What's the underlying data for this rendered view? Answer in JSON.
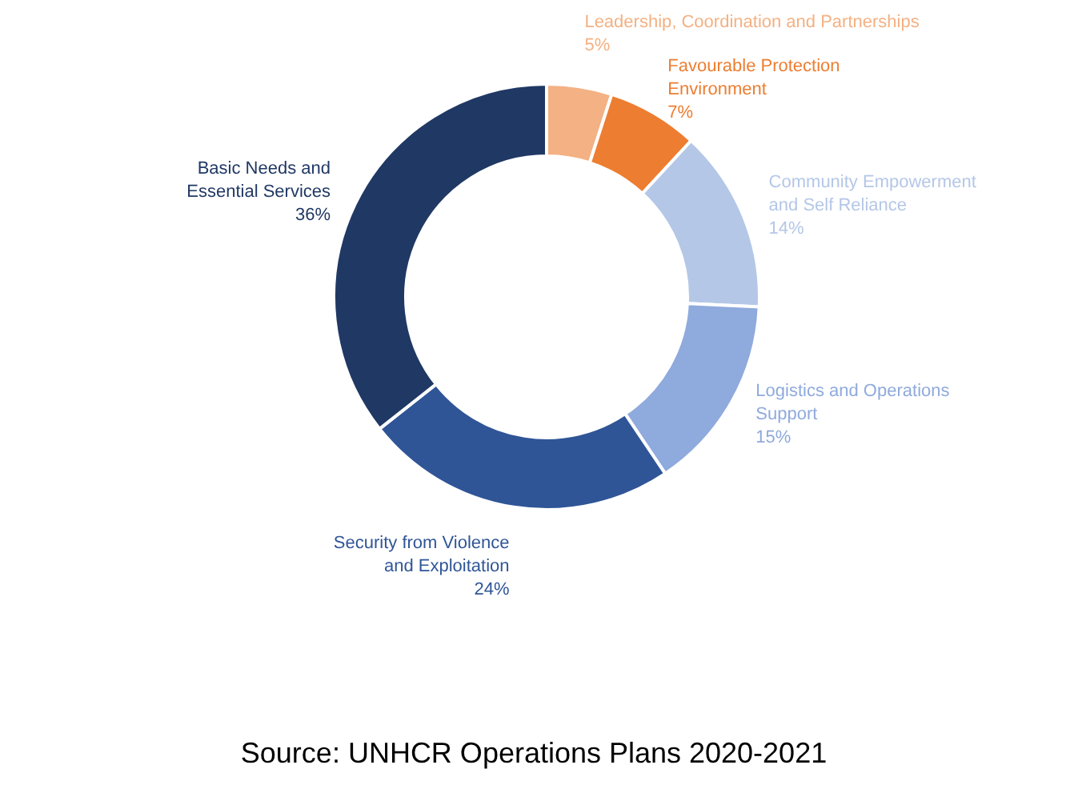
{
  "chart_data": {
    "type": "donut",
    "categories": [
      "Leadership, Coordination and Partnerships",
      "Favourable Protection Environment",
      "Community Empowerment and Self Reliance",
      "Logistics and Operations Support",
      "Security from Violence and Exploitation",
      "Basic Needs and Essential Services"
    ],
    "values": [
      5,
      7,
      14,
      15,
      24,
      36
    ],
    "value_labels": [
      "5%",
      "7%",
      "14%",
      "15%",
      "24%",
      "36%"
    ],
    "colors": [
      "#f4b183",
      "#ed7d31",
      "#b4c7e7",
      "#8faadc",
      "#2f5597",
      "#203864"
    ],
    "annotations": [
      "Source: UNHCR Operations Plans 2020-2021"
    ]
  }
}
